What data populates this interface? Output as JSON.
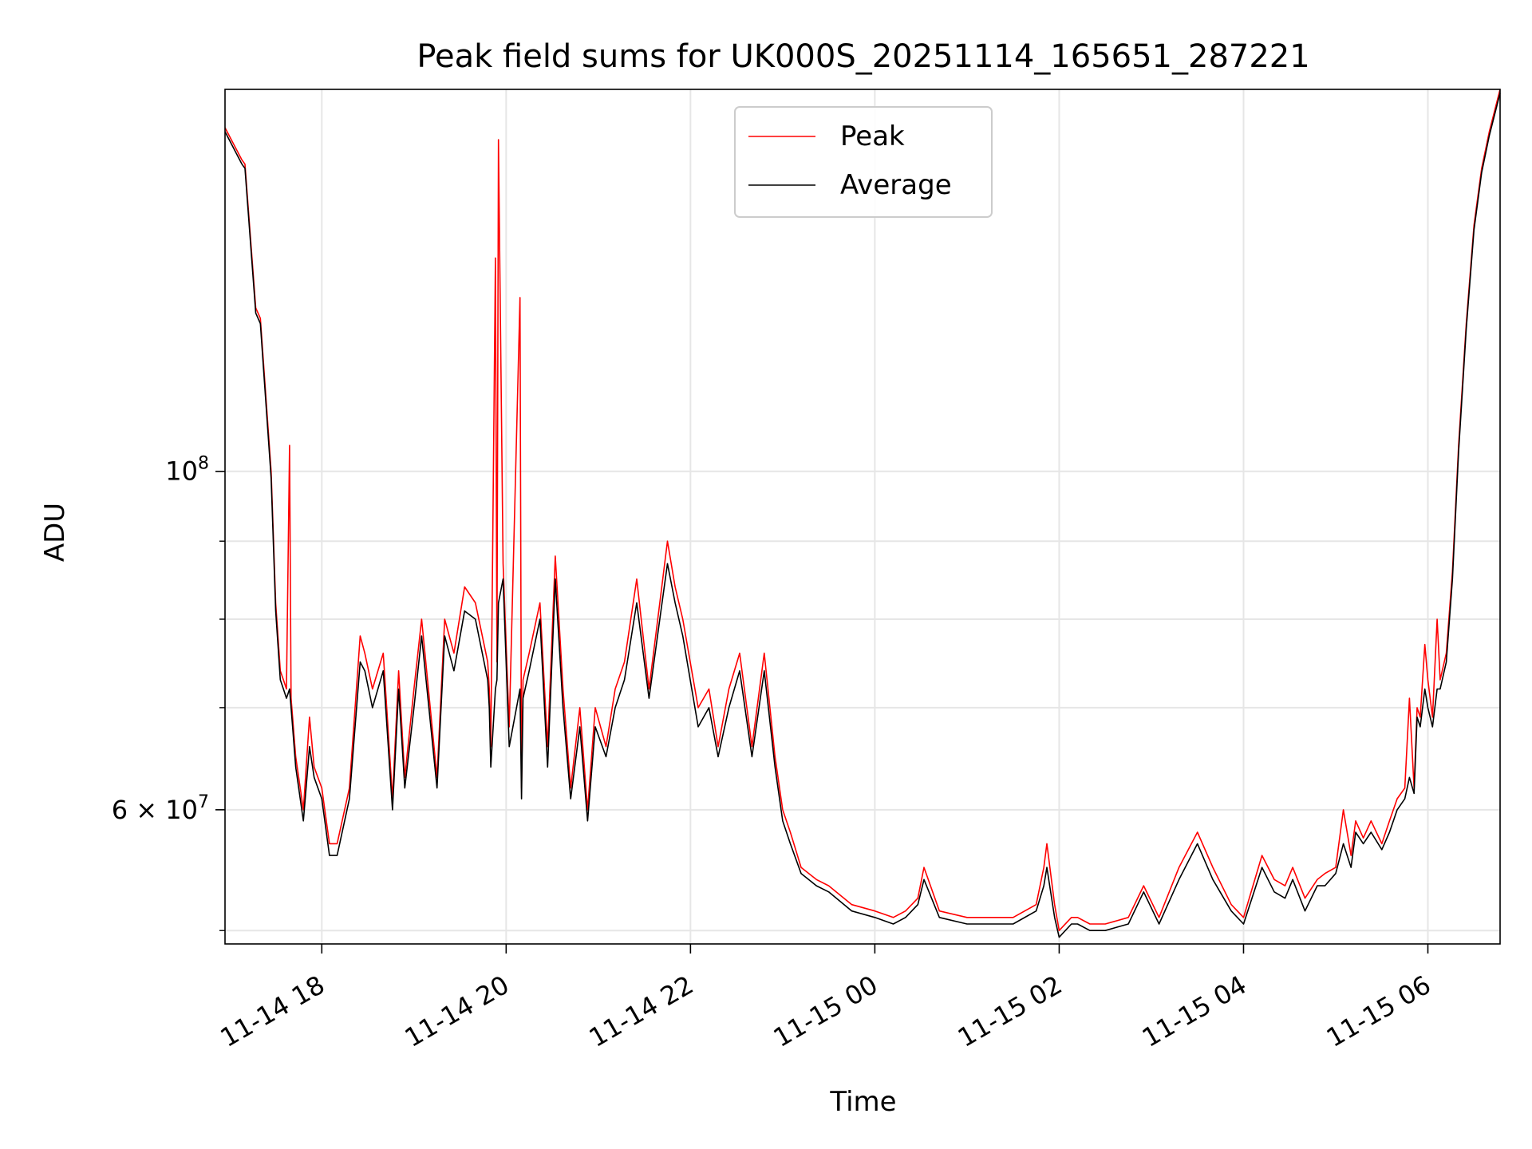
{
  "chart_data": {
    "type": "line",
    "title": "Peak field sums for UK000S_20251114_165651_287221",
    "xlabel": "Time",
    "ylabel": "ADU",
    "x_axis": {
      "kind": "datetime",
      "xlim": [
        "2025-11-14 16:57",
        "2025-11-15 06:47"
      ],
      "ticks": [
        {
          "value": "2025-11-14 18:00",
          "label": "11-14 18"
        },
        {
          "value": "2025-11-14 20:00",
          "label": "11-14 20"
        },
        {
          "value": "2025-11-14 22:00",
          "label": "11-14 22"
        },
        {
          "value": "2025-11-15 00:00",
          "label": "11-15 00"
        },
        {
          "value": "2025-11-15 02:00",
          "label": "11-15 02"
        },
        {
          "value": "2025-11-15 04:00",
          "label": "11-15 04"
        },
        {
          "value": "2025-11-15 06:00",
          "label": "11-15 06"
        }
      ]
    },
    "y_axis": {
      "scale": "log",
      "ylim": [
        49000000,
        178000000
      ],
      "major_ticks": [
        {
          "value": 100000000,
          "base": "10",
          "exp": "8"
        },
        {
          "value": 60000000,
          "mantissa": "6",
          "base": "10",
          "exp": "7"
        }
      ],
      "minor_ticks": [
        50000000,
        70000000,
        80000000,
        90000000
      ]
    },
    "grid": true,
    "legend": {
      "placement": "top-center",
      "entries": [
        "Peak",
        "Average"
      ]
    },
    "series": [
      {
        "name": "Peak",
        "color": "#ff0000",
        "x": [
          "2025-11-14 16:57",
          "2025-11-14 17:08",
          "2025-11-14 17:10",
          "2025-11-14 17:17",
          "2025-11-14 17:20",
          "2025-11-14 17:27",
          "2025-11-14 17:30",
          "2025-11-14 17:33",
          "2025-11-14 17:35",
          "2025-11-14 17:37",
          "2025-11-14 17:39",
          "2025-11-14 17:40",
          "2025-11-14 17:41",
          "2025-11-14 17:42",
          "2025-11-14 17:43",
          "2025-11-14 17:48",
          "2025-11-14 17:52",
          "2025-11-14 17:55",
          "2025-11-14 18:00",
          "2025-11-14 18:05",
          "2025-11-14 18:10",
          "2025-11-14 18:18",
          "2025-11-14 18:25",
          "2025-11-14 18:28",
          "2025-11-14 18:33",
          "2025-11-14 18:40",
          "2025-11-14 18:46",
          "2025-11-14 18:50",
          "2025-11-14 18:54",
          "2025-11-14 19:00",
          "2025-11-14 19:05",
          "2025-11-14 19:15",
          "2025-11-14 19:20",
          "2025-11-14 19:26",
          "2025-11-14 19:33",
          "2025-11-14 19:40",
          "2025-11-14 19:48",
          "2025-11-14 19:49",
          "2025-11-14 19:50",
          "2025-11-14 19:53",
          "2025-11-14 19:54",
          "2025-11-14 19:55",
          "2025-11-14 19:58",
          "2025-11-14 20:02",
          "2025-11-14 20:09",
          "2025-11-14 20:10",
          "2025-11-14 20:11",
          "2025-11-14 20:15",
          "2025-11-14 20:22",
          "2025-11-14 20:27",
          "2025-11-14 20:32",
          "2025-11-14 20:37",
          "2025-11-14 20:42",
          "2025-11-14 20:48",
          "2025-11-14 20:53",
          "2025-11-14 20:58",
          "2025-11-14 21:05",
          "2025-11-14 21:11",
          "2025-11-14 21:17",
          "2025-11-14 21:25",
          "2025-11-14 21:33",
          "2025-11-14 21:40",
          "2025-11-14 21:45",
          "2025-11-14 21:50",
          "2025-11-14 21:55",
          "2025-11-14 22:05",
          "2025-11-14 22:12",
          "2025-11-14 22:18",
          "2025-11-14 22:25",
          "2025-11-14 22:32",
          "2025-11-14 22:40",
          "2025-11-14 22:48",
          "2025-11-14 22:55",
          "2025-11-14 23:00",
          "2025-11-14 23:05",
          "2025-11-14 23:12",
          "2025-11-14 23:22",
          "2025-11-14 23:30",
          "2025-11-14 23:45",
          "2025-11-15 00:00",
          "2025-11-15 00:12",
          "2025-11-15 00:20",
          "2025-11-15 00:28",
          "2025-11-15 00:32",
          "2025-11-15 00:42",
          "2025-11-15 01:00",
          "2025-11-15 01:30",
          "2025-11-15 01:45",
          "2025-11-15 01:50",
          "2025-11-15 01:52",
          "2025-11-15 01:57",
          "2025-11-15 02:00",
          "2025-11-15 02:08",
          "2025-11-15 02:12",
          "2025-11-15 02:20",
          "2025-11-15 02:30",
          "2025-11-15 02:45",
          "2025-11-15 02:55",
          "2025-11-15 03:05",
          "2025-11-15 03:18",
          "2025-11-15 03:30",
          "2025-11-15 03:40",
          "2025-11-15 03:52",
          "2025-11-15 04:00",
          "2025-11-15 04:12",
          "2025-11-15 04:20",
          "2025-11-15 04:27",
          "2025-11-15 04:32",
          "2025-11-15 04:40",
          "2025-11-15 04:48",
          "2025-11-15 04:53",
          "2025-11-15 05:00",
          "2025-11-15 05:05",
          "2025-11-15 05:10",
          "2025-11-15 05:13",
          "2025-11-15 05:18",
          "2025-11-15 05:23",
          "2025-11-15 05:30",
          "2025-11-15 05:35",
          "2025-11-15 05:40",
          "2025-11-15 05:45",
          "2025-11-15 05:48",
          "2025-11-15 05:51",
          "2025-11-15 05:53",
          "2025-11-15 05:55",
          "2025-11-15 05:58",
          "2025-11-15 06:00",
          "2025-11-15 06:03",
          "2025-11-15 06:06",
          "2025-11-15 06:08",
          "2025-11-15 06:12",
          "2025-11-15 06:16",
          "2025-11-15 06:20",
          "2025-11-15 06:25",
          "2025-11-15 06:30",
          "2025-11-15 06:35",
          "2025-11-15 06:40",
          "2025-11-15 06:47"
        ],
        "y": [
          168000000,
          160000000,
          159000000,
          128000000,
          126000000,
          100000000,
          82000000,
          74000000,
          73000000,
          72000000,
          104000000,
          71000000,
          69000000,
          67000000,
          65000000,
          60000000,
          69000000,
          64000000,
          62000000,
          57000000,
          57000000,
          62000000,
          78000000,
          76000000,
          72000000,
          76000000,
          61000000,
          74000000,
          63000000,
          72000000,
          80000000,
          63000000,
          80000000,
          76000000,
          84000000,
          82000000,
          75000000,
          72000000,
          66000000,
          138000000,
          75000000,
          165000000,
          87000000,
          68000000,
          130000000,
          62000000,
          73000000,
          76000000,
          82000000,
          66000000,
          88000000,
          72000000,
          62000000,
          70000000,
          60000000,
          70000000,
          66000000,
          72000000,
          75000000,
          85000000,
          72000000,
          82000000,
          90000000,
          84000000,
          80000000,
          70000000,
          72000000,
          66000000,
          72000000,
          76000000,
          66000000,
          76000000,
          65000000,
          60000000,
          58000000,
          55000000,
          54000000,
          53500000,
          52000000,
          51500000,
          51000000,
          51500000,
          52500000,
          55000000,
          51500000,
          51000000,
          51000000,
          52000000,
          55000000,
          57000000,
          52000000,
          50000000,
          51000000,
          51000000,
          50500000,
          50500000,
          51000000,
          53500000,
          51000000,
          55000000,
          58000000,
          55000000,
          52000000,
          51000000,
          56000000,
          54000000,
          53500000,
          55000000,
          52500000,
          54000000,
          54500000,
          55000000,
          60000000,
          56000000,
          59000000,
          57500000,
          59000000,
          57000000,
          59000000,
          61000000,
          62000000,
          71000000,
          62000000,
          70000000,
          69000000,
          77000000,
          73000000,
          69000000,
          80000000,
          73000000,
          76000000,
          86000000,
          104000000,
          125000000,
          145000000,
          158000000,
          167000000,
          178000000
        ]
      },
      {
        "name": "Average",
        "color": "#000000",
        "x": [
          "2025-11-14 16:57",
          "2025-11-14 17:08",
          "2025-11-14 17:10",
          "2025-11-14 17:17",
          "2025-11-14 17:20",
          "2025-11-14 17:27",
          "2025-11-14 17:30",
          "2025-11-14 17:33",
          "2025-11-14 17:35",
          "2025-11-14 17:37",
          "2025-11-14 17:39",
          "2025-11-14 17:40",
          "2025-11-14 17:41",
          "2025-11-14 17:42",
          "2025-11-14 17:43",
          "2025-11-14 17:48",
          "2025-11-14 17:52",
          "2025-11-14 17:55",
          "2025-11-14 18:00",
          "2025-11-14 18:05",
          "2025-11-14 18:10",
          "2025-11-14 18:18",
          "2025-11-14 18:25",
          "2025-11-14 18:28",
          "2025-11-14 18:33",
          "2025-11-14 18:40",
          "2025-11-14 18:46",
          "2025-11-14 18:50",
          "2025-11-14 18:54",
          "2025-11-14 19:00",
          "2025-11-14 19:05",
          "2025-11-14 19:15",
          "2025-11-14 19:20",
          "2025-11-14 19:26",
          "2025-11-14 19:33",
          "2025-11-14 19:40",
          "2025-11-14 19:48",
          "2025-11-14 19:49",
          "2025-11-14 19:50",
          "2025-11-14 19:53",
          "2025-11-14 19:54",
          "2025-11-14 19:55",
          "2025-11-14 19:58",
          "2025-11-14 20:02",
          "2025-11-14 20:09",
          "2025-11-14 20:10",
          "2025-11-14 20:11",
          "2025-11-14 20:15",
          "2025-11-14 20:22",
          "2025-11-14 20:27",
          "2025-11-14 20:32",
          "2025-11-14 20:37",
          "2025-11-14 20:42",
          "2025-11-14 20:48",
          "2025-11-14 20:53",
          "2025-11-14 20:58",
          "2025-11-14 21:05",
          "2025-11-14 21:11",
          "2025-11-14 21:17",
          "2025-11-14 21:25",
          "2025-11-14 21:33",
          "2025-11-14 21:40",
          "2025-11-14 21:45",
          "2025-11-14 21:50",
          "2025-11-14 21:55",
          "2025-11-14 22:05",
          "2025-11-14 22:12",
          "2025-11-14 22:18",
          "2025-11-14 22:25",
          "2025-11-14 22:32",
          "2025-11-14 22:40",
          "2025-11-14 22:48",
          "2025-11-14 22:55",
          "2025-11-14 23:00",
          "2025-11-14 23:05",
          "2025-11-14 23:12",
          "2025-11-14 23:22",
          "2025-11-14 23:30",
          "2025-11-14 23:45",
          "2025-11-15 00:00",
          "2025-11-15 00:12",
          "2025-11-15 00:20",
          "2025-11-15 00:28",
          "2025-11-15 00:32",
          "2025-11-15 00:42",
          "2025-11-15 01:00",
          "2025-11-15 01:30",
          "2025-11-15 01:45",
          "2025-11-15 01:50",
          "2025-11-15 01:52",
          "2025-11-15 01:57",
          "2025-11-15 02:00",
          "2025-11-15 02:08",
          "2025-11-15 02:12",
          "2025-11-15 02:20",
          "2025-11-15 02:30",
          "2025-11-15 02:45",
          "2025-11-15 02:55",
          "2025-11-15 03:05",
          "2025-11-15 03:18",
          "2025-11-15 03:30",
          "2025-11-15 03:40",
          "2025-11-15 03:52",
          "2025-11-15 04:00",
          "2025-11-15 04:12",
          "2025-11-15 04:20",
          "2025-11-15 04:27",
          "2025-11-15 04:32",
          "2025-11-15 04:40",
          "2025-11-15 04:48",
          "2025-11-15 04:53",
          "2025-11-15 05:00",
          "2025-11-15 05:05",
          "2025-11-15 05:10",
          "2025-11-15 05:13",
          "2025-11-15 05:18",
          "2025-11-15 05:23",
          "2025-11-15 05:30",
          "2025-11-15 05:35",
          "2025-11-15 05:40",
          "2025-11-15 05:45",
          "2025-11-15 05:48",
          "2025-11-15 05:51",
          "2025-11-15 05:53",
          "2025-11-15 05:55",
          "2025-11-15 05:58",
          "2025-11-15 06:00",
          "2025-11-15 06:03",
          "2025-11-15 06:06",
          "2025-11-15 06:08",
          "2025-11-15 06:12",
          "2025-11-15 06:16",
          "2025-11-15 06:20",
          "2025-11-15 06:25",
          "2025-11-15 06:30",
          "2025-11-15 06:35",
          "2025-11-15 06:40",
          "2025-11-15 06:47"
        ],
        "y": [
          167000000,
          159000000,
          158000000,
          127000000,
          125000000,
          99000000,
          81000000,
          73000000,
          72000000,
          71000000,
          72000000,
          70000000,
          68000000,
          66000000,
          64000000,
          59000000,
          66000000,
          63000000,
          61000000,
          56000000,
          56000000,
          61000000,
          75000000,
          74000000,
          70000000,
          74000000,
          60000000,
          72000000,
          62000000,
          70000000,
          78000000,
          62000000,
          78000000,
          74000000,
          81000000,
          80000000,
          73000000,
          70000000,
          64000000,
          72000000,
          73000000,
          82000000,
          85000000,
          66000000,
          72000000,
          61000000,
          71000000,
          74000000,
          80000000,
          64000000,
          85000000,
          70000000,
          61000000,
          68000000,
          59000000,
          68000000,
          65000000,
          70000000,
          73000000,
          82000000,
          71000000,
          80000000,
          87000000,
          82000000,
          78000000,
          68000000,
          70000000,
          65000000,
          70000000,
          74000000,
          65000000,
          74000000,
          64000000,
          59000000,
          57000000,
          54500000,
          53500000,
          53000000,
          51500000,
          51000000,
          50500000,
          51000000,
          52000000,
          54000000,
          51000000,
          50500000,
          50500000,
          51500000,
          53500000,
          55000000,
          51000000,
          49500000,
          50500000,
          50500000,
          50000000,
          50000000,
          50500000,
          53000000,
          50500000,
          54000000,
          57000000,
          54000000,
          51500000,
          50500000,
          55000000,
          53000000,
          52500000,
          54000000,
          51500000,
          53500000,
          53500000,
          54500000,
          57000000,
          55000000,
          58000000,
          57000000,
          58000000,
          56500000,
          58000000,
          60000000,
          61000000,
          63000000,
          61500000,
          69000000,
          68000000,
          72000000,
          70000000,
          68000000,
          72000000,
          72000000,
          75000000,
          85000000,
          103000000,
          124000000,
          144000000,
          157000000,
          166000000,
          177000000
        ]
      }
    ]
  }
}
